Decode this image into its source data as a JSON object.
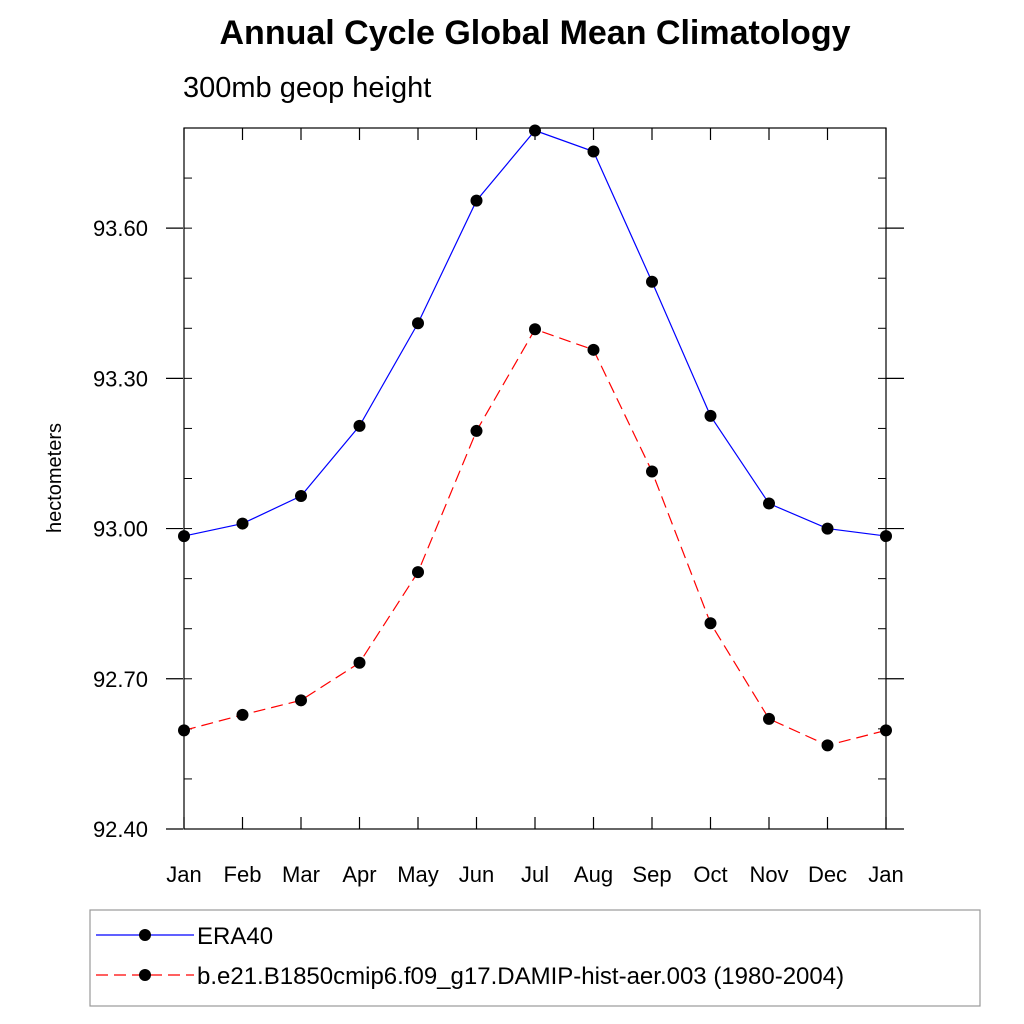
{
  "chart_data": {
    "type": "line",
    "title": "Annual Cycle Global Mean Climatology",
    "subtitle": "300mb geop height",
    "ylabel": "hectometers",
    "xlabel": "",
    "categories": [
      "Jan",
      "Feb",
      "Mar",
      "Apr",
      "May",
      "Jun",
      "Jul",
      "Aug",
      "Sep",
      "Oct",
      "Nov",
      "Dec",
      "Jan"
    ],
    "ylim": [
      92.4,
      93.8
    ],
    "yticks": [
      92.4,
      92.7,
      93.0,
      93.3,
      93.6
    ],
    "ytick_labels": [
      "92.40",
      "92.70",
      "93.00",
      "93.30",
      "93.60"
    ],
    "grid": false,
    "legend_position": "bottom",
    "series": [
      {
        "name": "ERA40",
        "color": "#0000ff",
        "dash": "solid",
        "marker": "filled-circle",
        "values": [
          92.985,
          93.01,
          93.065,
          93.205,
          93.41,
          93.655,
          93.795,
          93.753,
          93.493,
          93.225,
          93.05,
          93.0,
          92.985
        ]
      },
      {
        "name": "b.e21.B1850cmip6.f09_g17.DAMIP-hist-aer.003 (1980-2004)",
        "color": "#ff0000",
        "dash": "dashed",
        "marker": "filled-circle",
        "values": [
          92.597,
          92.628,
          92.657,
          92.732,
          92.913,
          93.195,
          93.398,
          93.357,
          93.114,
          92.811,
          92.62,
          92.567,
          92.597
        ]
      }
    ]
  }
}
